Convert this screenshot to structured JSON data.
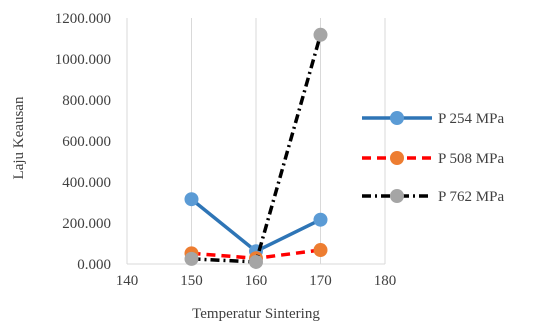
{
  "chart_data": {
    "type": "line",
    "xlabel": "Temperatur Sintering",
    "ylabel": "Laju Keausan",
    "xlim": [
      140,
      180
    ],
    "ylim": [
      0,
      1200
    ],
    "x_ticks": [
      "140",
      "150",
      "160",
      "170",
      "180"
    ],
    "y_ticks": [
      "0.000",
      "200.000",
      "400.000",
      "600.000",
      "800.000",
      "1000.000",
      "1200.000"
    ],
    "grid": "vertical",
    "legend_position": "right",
    "x": [
      150,
      160,
      170
    ],
    "series": [
      {
        "name": "P 254 MPa",
        "values": [
          316,
          62,
          216
        ],
        "line_color": "#2E75B6",
        "marker_color": "#5B9BD5",
        "line_style": "solid"
      },
      {
        "name": "P 508 MPa",
        "values": [
          52,
          28,
          68
        ],
        "line_color": "#FF0000",
        "marker_color": "#ED7D31",
        "line_style": "dashed"
      },
      {
        "name": "P 762 MPa",
        "values": [
          25,
          10,
          1118
        ],
        "line_color": "#000000",
        "marker_color": "#A5A5A5",
        "line_style": "dashdot"
      }
    ]
  }
}
